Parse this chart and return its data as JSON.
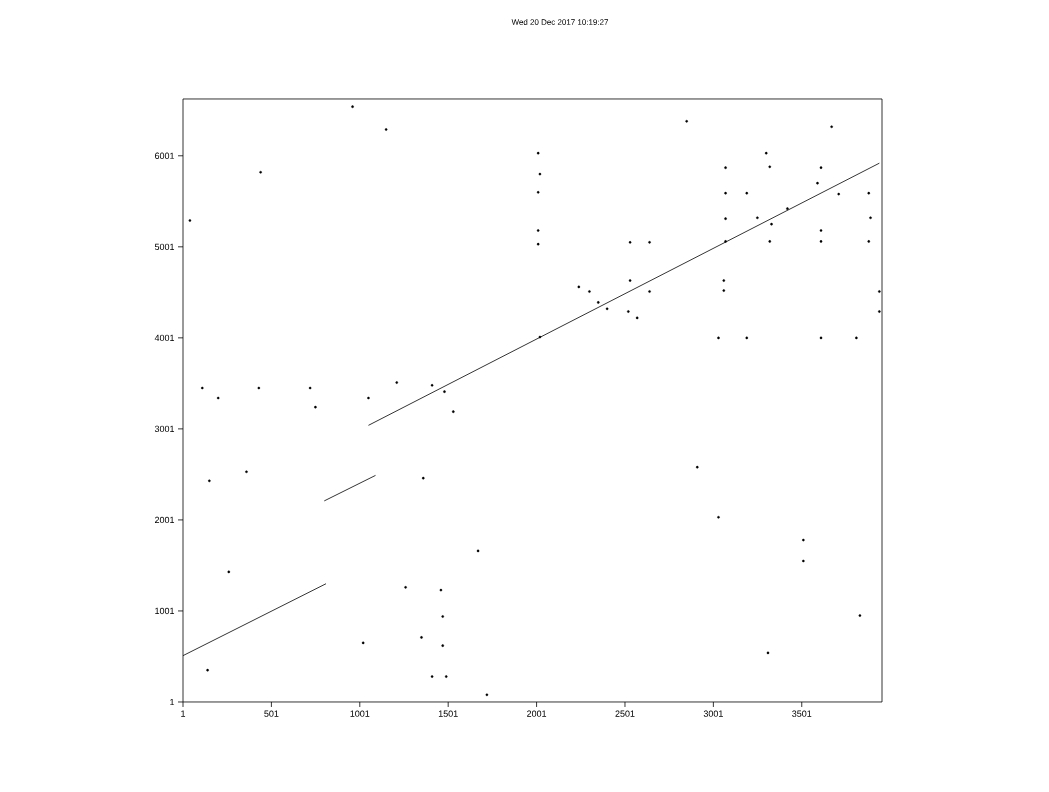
{
  "chart_data": {
    "type": "line",
    "subtitle": "Wed 20 Dec 2017 10:19:27",
    "xlim": [
      1,
      3955
    ],
    "ylim": [
      1,
      6625
    ],
    "xticks": [
      1,
      501,
      1001,
      1501,
      2001,
      2501,
      3001,
      3501
    ],
    "yticks": [
      1,
      1001,
      2001,
      3001,
      4001,
      5001,
      6001
    ],
    "grid": false,
    "series": [
      {
        "color": "#000000",
        "line_style": "solid",
        "marker": "none",
        "x": [
          1,
          810
        ],
        "values": [
          510,
          1300
        ]
      },
      {
        "color": "#000000",
        "line_style": "solid",
        "marker": "none",
        "x": [
          800,
          1090
        ],
        "values": [
          2210,
          2490
        ]
      },
      {
        "color": "#000000",
        "line_style": "solid",
        "marker": "none",
        "x": [
          1050,
          3940
        ],
        "values": [
          3040,
          5920
        ]
      },
      {
        "type": "scatter",
        "color": "#000000",
        "marker": "circle",
        "x": [
          960,
          1150,
          440,
          40,
          110,
          200,
          430,
          720,
          1050,
          1210,
          1410,
          1480,
          750,
          1530,
          150,
          360,
          1360,
          1670,
          260,
          1260,
          1460,
          1470,
          1350,
          1470,
          1020,
          140,
          1410,
          1490,
          1720,
          2910,
          3030,
          3510,
          3510,
          3830,
          3310,
          2850,
          3670,
          2010,
          2020,
          2010,
          2010,
          2010,
          3300,
          3070,
          3320,
          3610,
          3070,
          3190,
          3590,
          3710,
          3880,
          3070,
          3250,
          3420,
          3890,
          3330,
          3610,
          3070,
          3320,
          3610,
          3880,
          2530,
          2640,
          2240,
          2300,
          2530,
          3060,
          3060,
          2640,
          2350,
          2400,
          2520,
          2570,
          3940,
          3940,
          2020,
          3030,
          3190,
          3610,
          3810
        ],
        "values": [
          6540,
          6290,
          5820,
          5290,
          3450,
          3340,
          3450,
          3450,
          3340,
          3510,
          3480,
          3410,
          3240,
          3190,
          2430,
          2530,
          2460,
          1660,
          1430,
          1260,
          1230,
          940,
          710,
          620,
          650,
          350,
          280,
          280,
          80,
          2580,
          2030,
          1780,
          1550,
          950,
          540,
          6380,
          6320,
          6030,
          5800,
          5600,
          5180,
          5030,
          6030,
          5870,
          5880,
          5870,
          5590,
          5590,
          5700,
          5580,
          5590,
          5310,
          5320,
          5420,
          5320,
          5250,
          5180,
          5060,
          5060,
          5060,
          5060,
          5050,
          5050,
          4560,
          4510,
          4630,
          4630,
          4520,
          4510,
          4390,
          4320,
          4290,
          4220,
          4510,
          4290,
          4010,
          4000,
          4000,
          4000,
          4000
        ]
      }
    ]
  }
}
